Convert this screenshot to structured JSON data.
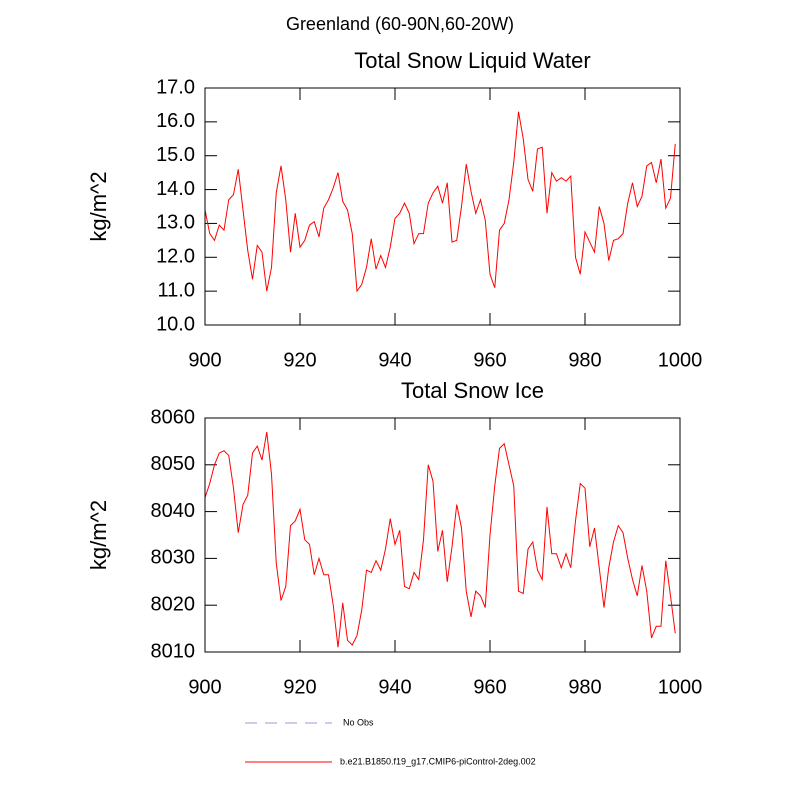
{
  "title": "Greenland (60-90N,60-20W)",
  "legend": [
    {
      "name": "No Obs",
      "color": "#9a9ad8",
      "dashed": true
    },
    {
      "name": "b.e21.B1850.f19_g17.CMIP6-piControl-2deg.002",
      "color": "#ff0000",
      "dashed": false
    }
  ],
  "chart_data": [
    {
      "type": "line",
      "title": "Total Snow Liquid Water",
      "y_label": "kg/m^2",
      "x": [
        900,
        901,
        902,
        903,
        904,
        905,
        906,
        907,
        908,
        909,
        910,
        911,
        912,
        913,
        914,
        915,
        916,
        917,
        918,
        919,
        920,
        921,
        922,
        923,
        924,
        925,
        926,
        927,
        928,
        929,
        930,
        931,
        932,
        933,
        934,
        935,
        936,
        937,
        938,
        939,
        940,
        941,
        942,
        943,
        944,
        945,
        946,
        947,
        948,
        949,
        950,
        951,
        952,
        953,
        954,
        955,
        956,
        957,
        958,
        959,
        960,
        961,
        962,
        963,
        964,
        965,
        966,
        967,
        968,
        969,
        970,
        971,
        972,
        973,
        974,
        975,
        976,
        977,
        978,
        979,
        980,
        981,
        982,
        983,
        984,
        985,
        986,
        987,
        988,
        989,
        990,
        991,
        992,
        993,
        994,
        995,
        996,
        997,
        998,
        999
      ],
      "series": [
        {
          "color": "#ff0000",
          "values": [
            13.4,
            12.7,
            12.5,
            12.95,
            12.8,
            13.7,
            13.85,
            14.6,
            13.4,
            12.2,
            11.35,
            12.35,
            12.15,
            11.0,
            11.7,
            13.9,
            14.7,
            13.7,
            12.15,
            13.3,
            12.3,
            12.5,
            12.95,
            13.05,
            12.6,
            13.45,
            13.7,
            14.05,
            14.5,
            13.65,
            13.4,
            12.7,
            11.0,
            11.2,
            11.7,
            12.55,
            11.65,
            12.05,
            11.7,
            12.3,
            13.15,
            13.3,
            13.6,
            13.3,
            12.4,
            12.7,
            12.7,
            13.6,
            13.9,
            14.1,
            13.6,
            14.2,
            12.45,
            12.5,
            13.5,
            14.75,
            13.95,
            13.3,
            13.7,
            13.1,
            11.5,
            11.1,
            12.8,
            13.0,
            13.7,
            14.8,
            16.3,
            15.5,
            14.3,
            13.95,
            15.2,
            15.25,
            13.3,
            14.5,
            14.25,
            14.35,
            14.25,
            14.4,
            12.0,
            11.5,
            12.75,
            12.45,
            12.15,
            13.5,
            13.0,
            11.9,
            12.5,
            12.55,
            12.7,
            13.6,
            14.2,
            13.5,
            13.8,
            14.7,
            14.8,
            14.2,
            14.9,
            13.45,
            13.75,
            15.35
          ]
        }
      ],
      "xlim": [
        900,
        1000
      ],
      "xticks": [
        900,
        920,
        940,
        960,
        980,
        1000
      ],
      "ylim": [
        10,
        17
      ],
      "yticks": [
        {
          "value": 10,
          "label": "10.0"
        },
        {
          "value": 11,
          "label": "11.0"
        },
        {
          "value": 12,
          "label": "12.0"
        },
        {
          "value": 13,
          "label": "13.0"
        },
        {
          "value": 14,
          "label": "14.0"
        },
        {
          "value": 15,
          "label": "15.0"
        },
        {
          "value": 16,
          "label": "16.0"
        },
        {
          "value": 17,
          "label": "17.0"
        }
      ]
    },
    {
      "type": "line",
      "title": "Total Snow Ice",
      "y_label": "kg/m^2",
      "x": [
        900,
        901,
        902,
        903,
        904,
        905,
        906,
        907,
        908,
        909,
        910,
        911,
        912,
        913,
        914,
        915,
        916,
        917,
        918,
        919,
        920,
        921,
        922,
        923,
        924,
        925,
        926,
        927,
        928,
        929,
        930,
        931,
        932,
        933,
        934,
        935,
        936,
        937,
        938,
        939,
        940,
        941,
        942,
        943,
        944,
        945,
        946,
        947,
        948,
        949,
        950,
        951,
        952,
        953,
        954,
        955,
        956,
        957,
        958,
        959,
        960,
        961,
        962,
        963,
        964,
        965,
        966,
        967,
        968,
        969,
        970,
        971,
        972,
        973,
        974,
        975,
        976,
        977,
        978,
        979,
        980,
        981,
        982,
        983,
        984,
        985,
        986,
        987,
        988,
        989,
        990,
        991,
        992,
        993,
        994,
        995,
        996,
        997,
        998,
        999
      ],
      "series": [
        {
          "color": "#ff0000",
          "values": [
            8043,
            8046,
            8050,
            8052.5,
            8053,
            8052,
            8045,
            8035.5,
            8041.5,
            8043.5,
            8052.5,
            8054,
            8051,
            8057,
            8048,
            8029,
            8021,
            8024,
            8037,
            8038,
            8040.5,
            8034,
            8033,
            8026.5,
            8030,
            8026.5,
            8026.5,
            8020,
            8011,
            8020.5,
            8012.5,
            8011.5,
            8013.5,
            8019,
            8027.5,
            8027,
            8029.5,
            8027.5,
            8032,
            8038.5,
            8033,
            8036,
            8024,
            8023.5,
            8027,
            8025.5,
            8034,
            8050,
            8046.5,
            8031.5,
            8036,
            8025,
            8032.5,
            8041.5,
            8036.5,
            8023,
            8017.5,
            8023,
            8022,
            8019.5,
            8035,
            8045.5,
            8053.5,
            8054.5,
            8050,
            8045.5,
            8023,
            8022.5,
            8032,
            8033.5,
            8027.5,
            8025.5,
            8041,
            8031,
            8031,
            8028,
            8031,
            8028,
            8038,
            8046,
            8045,
            8032.5,
            8036.5,
            8028,
            8019.5,
            8028,
            8033.5,
            8037,
            8035.5,
            8030,
            8025.5,
            8022,
            8028.5,
            8023,
            8013,
            8015.5,
            8015.5,
            8029.5,
            8022,
            8014
          ]
        }
      ],
      "xlim": [
        900,
        1000
      ],
      "xticks": [
        900,
        920,
        940,
        960,
        980,
        1000
      ],
      "ylim": [
        8010,
        8060
      ],
      "yticks": [
        8010,
        8020,
        8030,
        8040,
        8050,
        8060
      ]
    }
  ]
}
